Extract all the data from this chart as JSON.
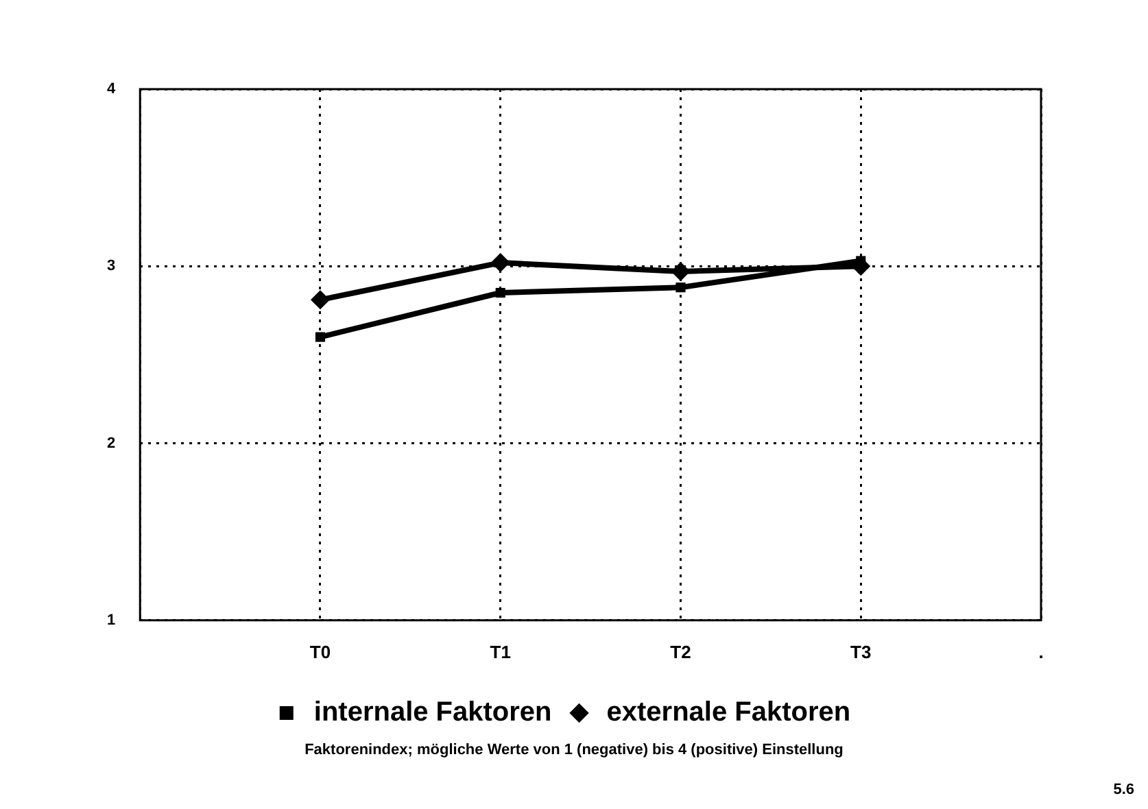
{
  "chart_data": {
    "type": "line",
    "categories": [
      null,
      "T0",
      "T1",
      "T2",
      "T3",
      "."
    ],
    "series": [
      {
        "name": "internale Faktoren",
        "color": "#000000",
        "marker": "square",
        "values": [
          null,
          2.6,
          2.85,
          2.88,
          3.03,
          null
        ]
      },
      {
        "name": "externale Faktoren",
        "color": "#000000",
        "marker": "diamond",
        "values": [
          null,
          2.81,
          3.02,
          2.97,
          3.0,
          null
        ]
      }
    ],
    "ylim": [
      1,
      4
    ],
    "yticks": [
      1,
      2,
      3,
      4
    ],
    "grid": true,
    "line_style": "solid",
    "legend": "bottom",
    "annotations": [
      "Faktorenindex; mögliche Werte von 1 (negative) bis 4 (positive) Einstellung",
      "5.6"
    ]
  }
}
